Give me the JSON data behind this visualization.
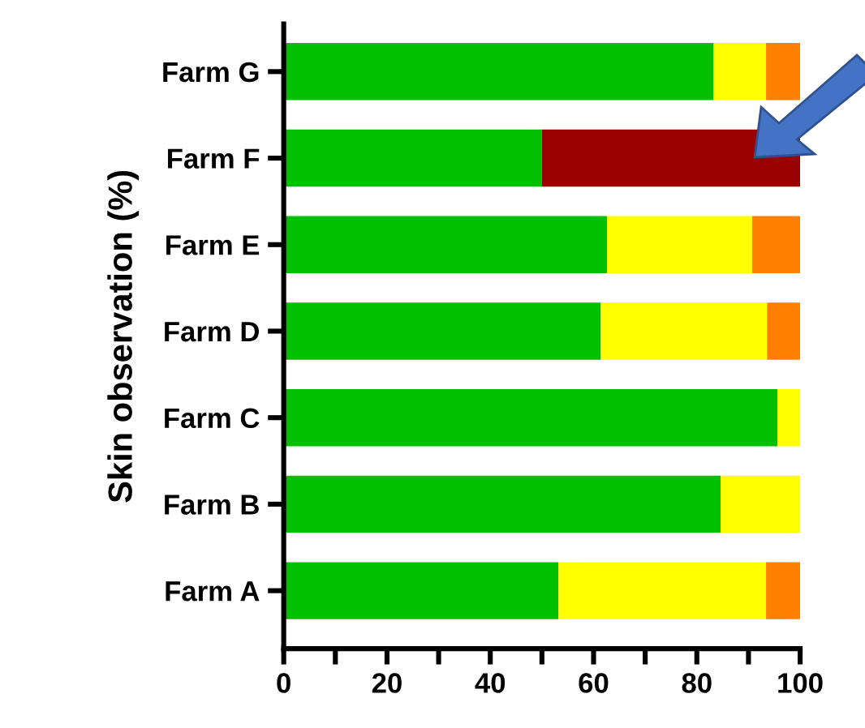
{
  "chart_data": {
    "type": "bar",
    "orientation": "horizontal",
    "stacked": true,
    "ylabel": "Skin observation (%)",
    "categories": [
      "Farm G",
      "Farm F",
      "Farm E",
      "Farm D",
      "Farm C",
      "Farm B",
      "Farm A"
    ],
    "series": [
      {
        "color": "#00c000",
        "values": [
          83.2,
          50,
          62.6,
          61.4,
          95.6,
          84.6,
          53.2
        ]
      },
      {
        "color": "#ffff00",
        "values": [
          10.2,
          null,
          28.1,
          32.2,
          4.4,
          15.4,
          40.2
        ]
      },
      {
        "color": "#ff8000",
        "values": [
          6.6,
          null,
          9.3,
          6.4,
          null,
          null,
          6.6
        ]
      },
      {
        "color": "#990000",
        "values": [
          null,
          50,
          null,
          null,
          null,
          null,
          null
        ]
      }
    ],
    "xlim": [
      0,
      100
    ],
    "xticks": [
      0,
      {
        "value": 10,
        "label": null
      },
      20,
      {
        "value": 30,
        "label": null
      },
      40,
      {
        "value": 50,
        "label": null
      },
      60,
      {
        "value": 70,
        "label": null
      },
      80,
      {
        "value": 90,
        "label": null
      },
      100
    ],
    "grid": false,
    "legend": false
  }
}
